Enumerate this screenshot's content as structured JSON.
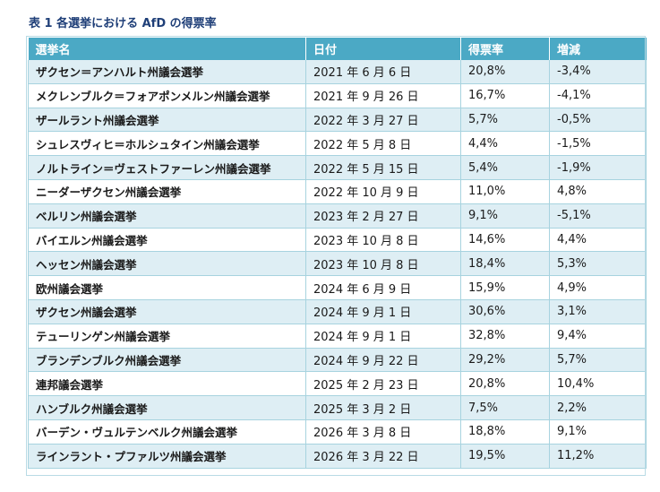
{
  "title": "表 1  各選挙における AfD の得票率",
  "table": {
    "headers": [
      "選挙名",
      "日付",
      "得票率",
      "増減"
    ],
    "rows": [
      [
        "ザクセン＝アンハルト州議会選挙",
        "2021 年 6 月 6 日",
        "20,8%",
        "-3,4%"
      ],
      [
        "メクレンブルク＝フォアポンメルン州議会選挙",
        "2021 年 9 月 26 日",
        "16,7%",
        "-4,1%"
      ],
      [
        "ザールラント州議会選挙",
        "2022 年 3 月 27 日",
        "5,7%",
        "-0,5%"
      ],
      [
        "シュレスヴィヒ＝ホルシュタイン州議会選挙",
        "2022 年 5 月 8 日",
        "4,4%",
        "-1,5%"
      ],
      [
        "ノルトライン＝ヴェストファーレン州議会選挙",
        "2022 年 5 月 15 日",
        "5,4%",
        "-1,9%"
      ],
      [
        "ニーダーザクセン州議会選挙",
        "2022 年 10 月 9 日",
        "11,0%",
        "4,8%"
      ],
      [
        "ベルリン州議会選挙",
        "2023 年 2 月 27 日",
        "9,1%",
        "-5,1%"
      ],
      [
        "バイエルン州議会選挙",
        "2023 年 10 月 8 日",
        "14,6%",
        "4,4%"
      ],
      [
        "ヘッセン州議会選挙",
        "2023 年 10 月 8 日",
        "18,4%",
        "5,3%"
      ],
      [
        "欧州議会選挙",
        "2024 年 6 月 9 日",
        "15,9%",
        "4,9%"
      ],
      [
        "ザクセン州議会選挙",
        "2024 年 9 月 1 日",
        "30,6%",
        "3,1%"
      ],
      [
        "テューリンゲン州議会選挙",
        "2024 年 9 月 1 日",
        "32,8%",
        "9,4%"
      ],
      [
        "ブランデンブルク州議会選挙",
        "2024 年 9 月 22 日",
        "29,2%",
        "5,7%"
      ],
      [
        "連邦議会選挙",
        "2025 年 2 月 23 日",
        "20,8%",
        "10,4%"
      ],
      [
        "ハンブルク州議会選挙",
        "2025 年 3 月 2 日",
        "7,5%",
        "2,2%"
      ],
      [
        "バーデン・ヴュルテンベルク州議会選挙",
        "2026 年 3 月 8 日",
        "18,8%",
        "9,1%"
      ],
      [
        "ラインラント・プファルツ州議会選挙",
        "2026 年 3 月 22 日",
        "19,5%",
        "11,2%"
      ]
    ]
  },
  "colors": {
    "title": "#1f3f78",
    "header_bg": "#4ba9c5",
    "stripe": "#deeef4",
    "border": "#a7d3df"
  }
}
